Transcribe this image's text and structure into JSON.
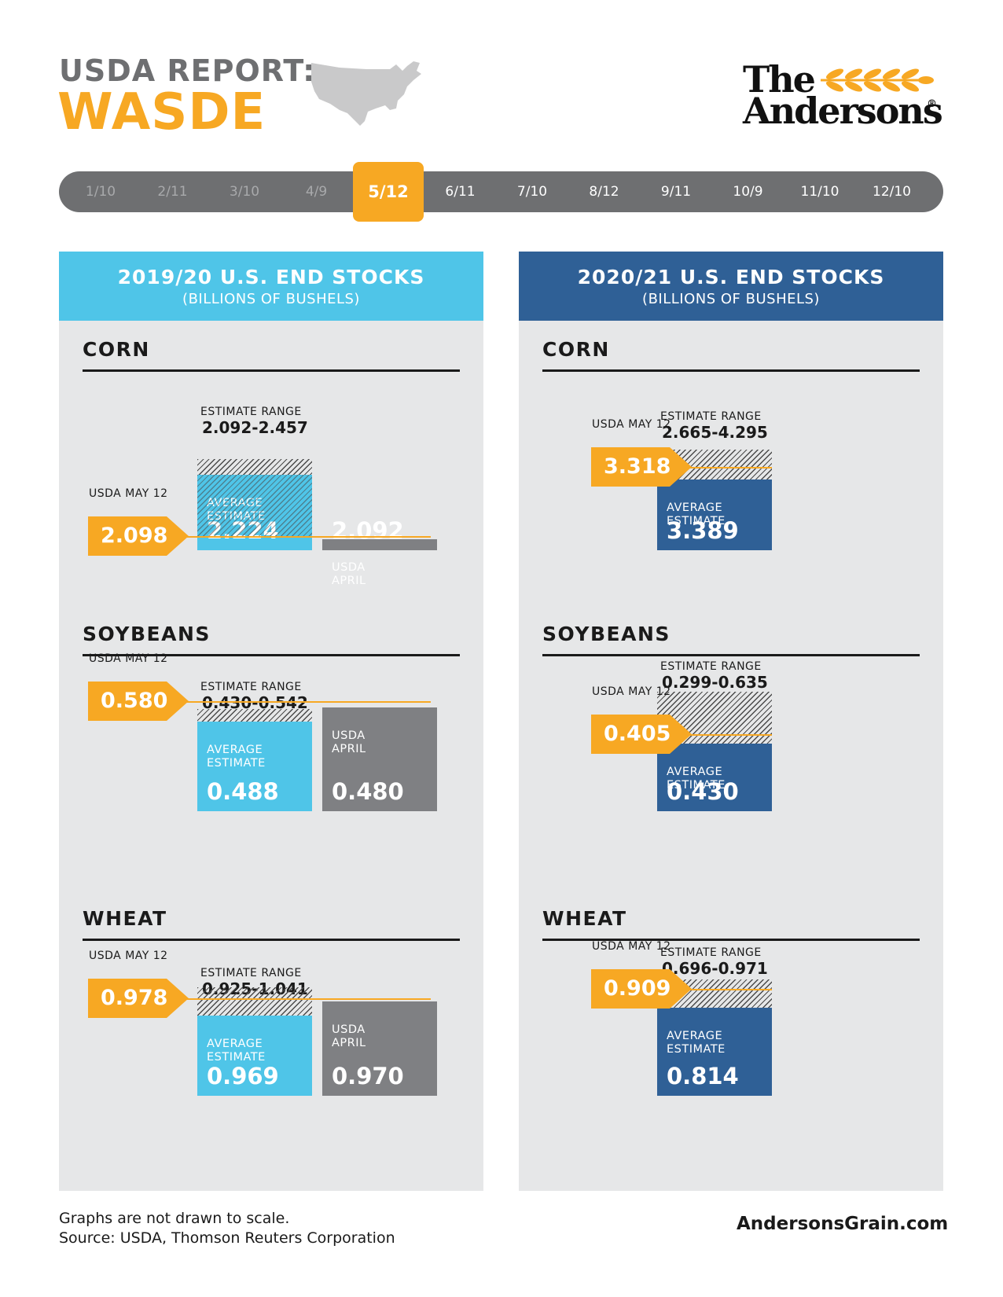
{
  "header": {
    "title_line1": "USDA REPORT:",
    "title_line2": "WASDE",
    "map_icon": "us-map-icon",
    "logo": {
      "line1": "The",
      "line2": "Andersons",
      "mark": "®"
    }
  },
  "timeline": {
    "dates": [
      "1/10",
      "2/11",
      "3/10",
      "4/9",
      "5/12",
      "6/11",
      "7/10",
      "8/12",
      "9/11",
      "10/9",
      "11/10",
      "12/10"
    ],
    "current": "5/12"
  },
  "colors": {
    "accent_orange": "#f7a823",
    "panel_2019": "#4fc5e8",
    "panel_2020": "#2f6096",
    "usda_april_gray": "#7f8083",
    "panel_bg": "#e6e7e8"
  },
  "labels": {
    "usda_may": "USDA MAY 12",
    "estimate_range": "ESTIMATE RANGE",
    "average_estimate": "AVERAGE\nESTIMATE",
    "usda_april": "USDA\nAPRIL"
  },
  "chart_data": [
    {
      "type": "bar",
      "title": "2019/20 U.S. END STOCKS",
      "subtitle": "(BILLIONS OF BUSHELS)",
      "commodities": [
        {
          "name": "CORN",
          "usda_may_12": "2.098",
          "estimate_range": "2.092-2.457",
          "average_estimate": "2.224",
          "usda_april": "2.092"
        },
        {
          "name": "SOYBEANS",
          "usda_may_12": "0.580",
          "estimate_range": "0.430-0.542",
          "average_estimate": "0.488",
          "usda_april": "0.480"
        },
        {
          "name": "WHEAT",
          "usda_may_12": "0.978",
          "estimate_range": "0.925-1.041",
          "average_estimate": "0.969",
          "usda_april": "0.970"
        }
      ]
    },
    {
      "type": "bar",
      "title": "2020/21 U.S. END STOCKS",
      "subtitle": "(BILLIONS OF BUSHELS)",
      "commodities": [
        {
          "name": "CORN",
          "usda_may_12": "3.318",
          "estimate_range": "2.665-4.295",
          "average_estimate": "3.389"
        },
        {
          "name": "SOYBEANS",
          "usda_may_12": "0.405",
          "estimate_range": "0.299-0.635",
          "average_estimate": "0.430"
        },
        {
          "name": "WHEAT",
          "usda_may_12": "0.909",
          "estimate_range": "0.696-0.971",
          "average_estimate": "0.814"
        }
      ]
    }
  ],
  "footer": {
    "note_line1": "Graphs are not drawn to scale.",
    "note_line2": "Source: USDA, Thomson Reuters Corporation",
    "website": "AndersonsGrain.com"
  }
}
